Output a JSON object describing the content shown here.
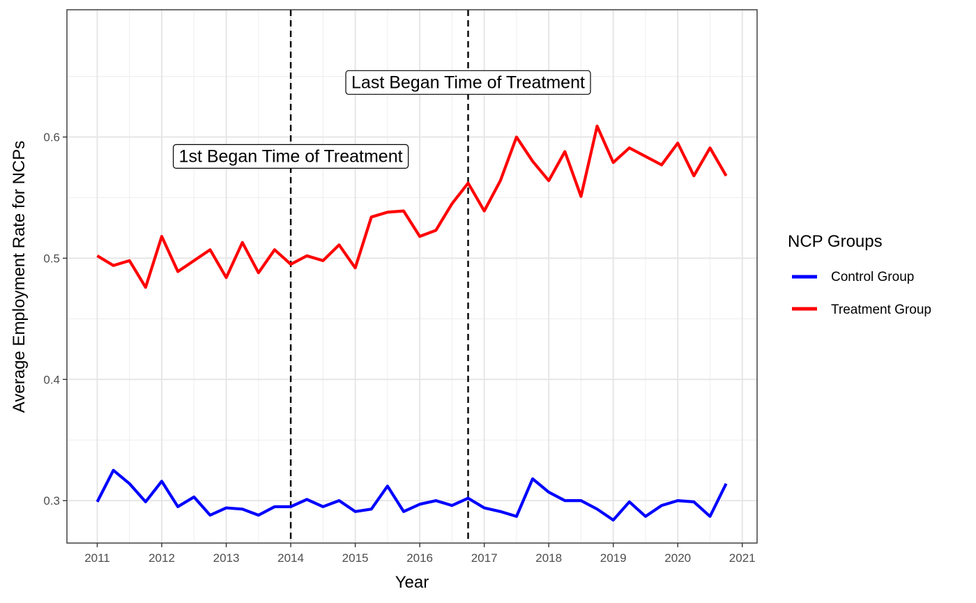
{
  "chart_data": {
    "type": "line",
    "xlabel": "Year",
    "ylabel": "Average Employment Rate for NCPs",
    "x_ticks": [
      2011,
      2012,
      2013,
      2014,
      2015,
      2016,
      2017,
      2018,
      2019,
      2020,
      2021
    ],
    "y_ticks": [
      0.3,
      0.4,
      0.5,
      0.6
    ],
    "y_tick_labels": [
      "0.3",
      "0.4",
      "0.5",
      "0.6"
    ],
    "xlim": [
      2010.53,
      2021.23
    ],
    "ylim": [
      0.265,
      0.705
    ],
    "grid": true,
    "x": [
      2011.0,
      2011.25,
      2011.5,
      2011.75,
      2012.0,
      2012.25,
      2012.5,
      2012.75,
      2013.0,
      2013.25,
      2013.5,
      2013.75,
      2014.0,
      2014.25,
      2014.5,
      2014.75,
      2015.0,
      2015.25,
      2015.5,
      2015.75,
      2016.0,
      2016.25,
      2016.5,
      2016.75,
      2017.0,
      2017.25,
      2017.5,
      2017.75,
      2018.0,
      2018.25,
      2018.5,
      2018.75,
      2019.0,
      2019.25,
      2019.5,
      2019.75,
      2020.0,
      2020.25,
      2020.5,
      2020.75
    ],
    "series": [
      {
        "name": "Control Group",
        "color": "#0000ff",
        "values": [
          0.299,
          0.325,
          0.314,
          0.299,
          0.316,
          0.295,
          0.303,
          0.288,
          0.294,
          0.293,
          0.288,
          0.295,
          0.295,
          0.301,
          0.295,
          0.3,
          0.291,
          0.293,
          0.312,
          0.291,
          0.297,
          0.3,
          0.296,
          0.302,
          0.294,
          0.291,
          0.287,
          0.318,
          0.307,
          0.3,
          0.3,
          0.293,
          0.284,
          0.299,
          0.287,
          0.296,
          0.3,
          0.299,
          0.287,
          0.314
        ]
      },
      {
        "name": "Treatment Group",
        "color": "#ff0000",
        "values": [
          0.502,
          0.494,
          0.498,
          0.476,
          0.518,
          0.489,
          0.498,
          0.507,
          0.484,
          0.513,
          0.488,
          0.507,
          0.495,
          0.502,
          0.498,
          0.511,
          0.492,
          0.534,
          0.538,
          0.539,
          0.518,
          0.523,
          0.545,
          0.562,
          0.539,
          0.564,
          0.6,
          0.58,
          0.564,
          0.588,
          0.551,
          0.609,
          0.579,
          0.591,
          0.584,
          0.577,
          0.595,
          0.568,
          0.591,
          0.568
        ]
      }
    ],
    "legend": {
      "title": "NCP Groups",
      "placement": "right"
    },
    "vlines": [
      2014.0,
      2016.75
    ],
    "annotations": [
      {
        "text": "1st Began Time of Treatment",
        "x": 2014.0,
        "y": 0.584
      },
      {
        "text": "Last Began Time of Treatment",
        "x": 2016.75,
        "y": 0.645
      }
    ]
  }
}
